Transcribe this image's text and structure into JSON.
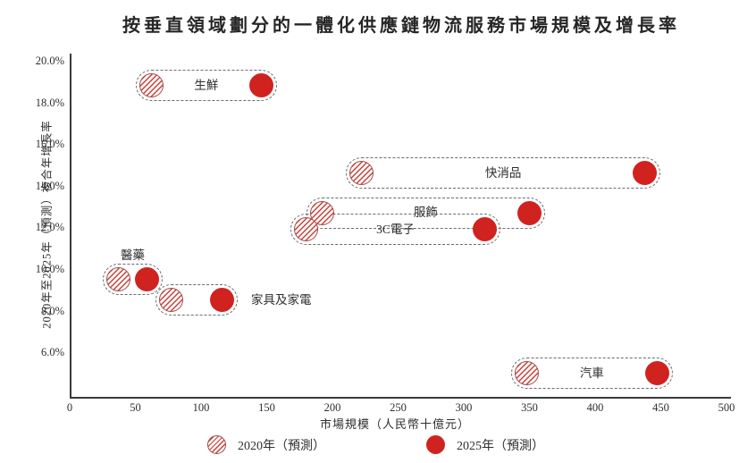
{
  "title": "按垂直領域劃分的一體化供應鏈物流服務市場規模及增長率",
  "chart_data": {
    "type": "scatter",
    "title": "按垂直領域劃分的一體化供應鏈物流服務市場規模及增長率",
    "xlabel": "市場規模（人民幣十億元）",
    "ylabel": "2020年至2025年（預測）複合年增長率",
    "xlim": [
      0,
      500
    ],
    "x_ticks": [
      0,
      50,
      100,
      150,
      200,
      250,
      300,
      350,
      400,
      450,
      500
    ],
    "y_ticks": [
      {
        "value": 20,
        "label": "20.0%"
      },
      {
        "value": 18,
        "label": "18.0%"
      },
      {
        "value": 16,
        "label": "16.0%"
      },
      {
        "value": 14,
        "label": "14.0%"
      },
      {
        "value": 12,
        "label": "12.0%"
      },
      {
        "value": 10,
        "label": "10.0%"
      },
      {
        "value": 8,
        "label": "8.0%"
      },
      {
        "value": 6,
        "label": "6.0%"
      }
    ],
    "grid": false,
    "legend_position": "bottom",
    "series": [
      {
        "name": "2020年（預測）",
        "style": "hatched"
      },
      {
        "name": "2025年（預測）",
        "style": "solid"
      }
    ],
    "categories": [
      {
        "label": "生鮮",
        "market_size_2020": 62,
        "market_size_2025": 146,
        "cagr_pct": 18.8,
        "label_position": "inside"
      },
      {
        "label": "快消品",
        "market_size_2020": 222,
        "market_size_2025": 438,
        "cagr_pct": 14.6,
        "label_position": "inside"
      },
      {
        "label": "服飾",
        "market_size_2020": 192,
        "market_size_2025": 350,
        "cagr_pct": 12.7,
        "label_position": "inside"
      },
      {
        "label": "3C電子",
        "market_size_2020": 180,
        "market_size_2025": 316,
        "cagr_pct": 11.9,
        "label_position": "inside"
      },
      {
        "label": "醫藥",
        "market_size_2020": 37,
        "market_size_2025": 59,
        "cagr_pct": 9.5,
        "label_position": "above"
      },
      {
        "label": "家具及家電",
        "market_size_2020": 77,
        "market_size_2025": 116,
        "cagr_pct": 8.5,
        "label_position": "right"
      },
      {
        "label": "汽車",
        "market_size_2020": 348,
        "market_size_2025": 447,
        "cagr_pct": 5.0,
        "label_position": "inside"
      }
    ]
  },
  "colors": {
    "solid_2025": "#d0231f",
    "hatch_2020": "#c8443e",
    "hatch_border": "#a24d4a",
    "capsule_dash": "#6b6b6b",
    "axis": "#3a3a3a",
    "text": "#2e2e2e"
  }
}
